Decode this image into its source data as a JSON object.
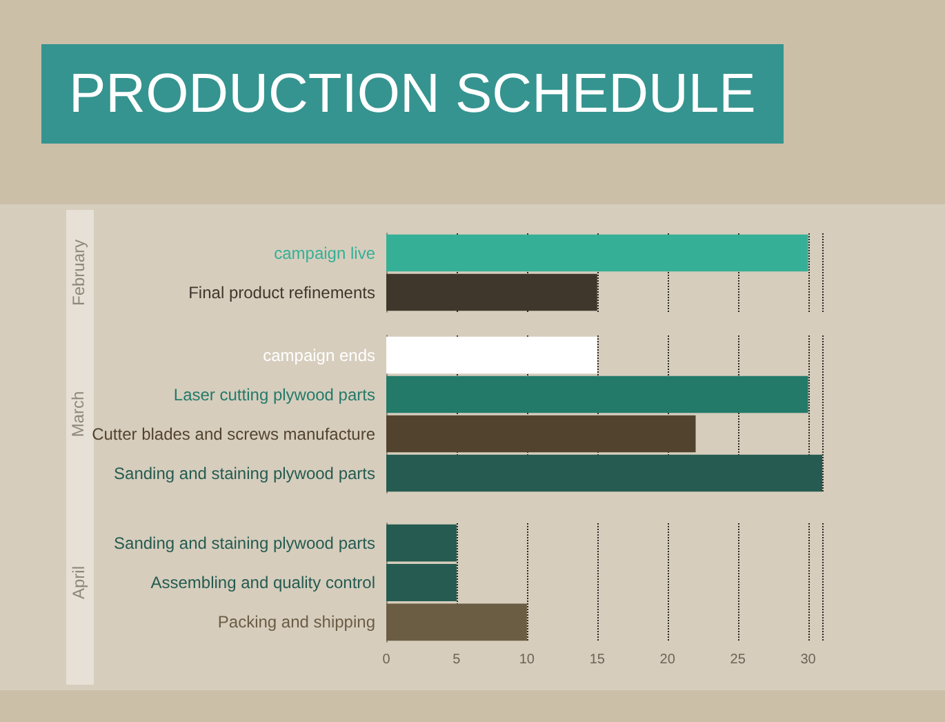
{
  "chart_data": [
    {
      "type": "bar",
      "orientation": "horizontal",
      "title": "PRODUCTION SCHEDULE",
      "ylabel": "February",
      "categories": [
        "campaign live",
        "Final product refinements"
      ],
      "values": [
        30,
        15
      ],
      "colors": [
        "#35b096",
        "#3f372b"
      ],
      "xlim": [
        0,
        31
      ],
      "xticks": [
        0,
        5,
        10,
        15,
        20,
        25,
        30
      ],
      "grid": "x",
      "tick_labels": "y"
    },
    {
      "type": "bar",
      "orientation": "horizontal",
      "ylabel": "March",
      "categories": [
        "campaign ends",
        "Laser cutting plywood parts",
        "Cutter blades and screws manufacture",
        "Sanding and staining plywood parts"
      ],
      "values": [
        15,
        30,
        22,
        31
      ],
      "colors": [
        "#ffffff",
        "#237a69",
        "#52432e",
        "#255b50"
      ],
      "xlim": [
        0,
        31
      ],
      "xticks": [
        0,
        5,
        10,
        15,
        20,
        25,
        30
      ],
      "grid": "x",
      "tick_labels": "y"
    },
    {
      "type": "bar",
      "orientation": "horizontal",
      "ylabel": "April",
      "categories": [
        "Sanding and staining plywood parts",
        "Assembling and quality control",
        "Packing and shipping"
      ],
      "values": [
        5,
        5,
        10
      ],
      "colors": [
        "#255b50",
        "#255b50",
        "#6b5c44"
      ],
      "xlim": [
        0,
        31
      ],
      "xticks": [
        0,
        5,
        10,
        15,
        20,
        25,
        30
      ],
      "grid": "x"
    }
  ]
}
